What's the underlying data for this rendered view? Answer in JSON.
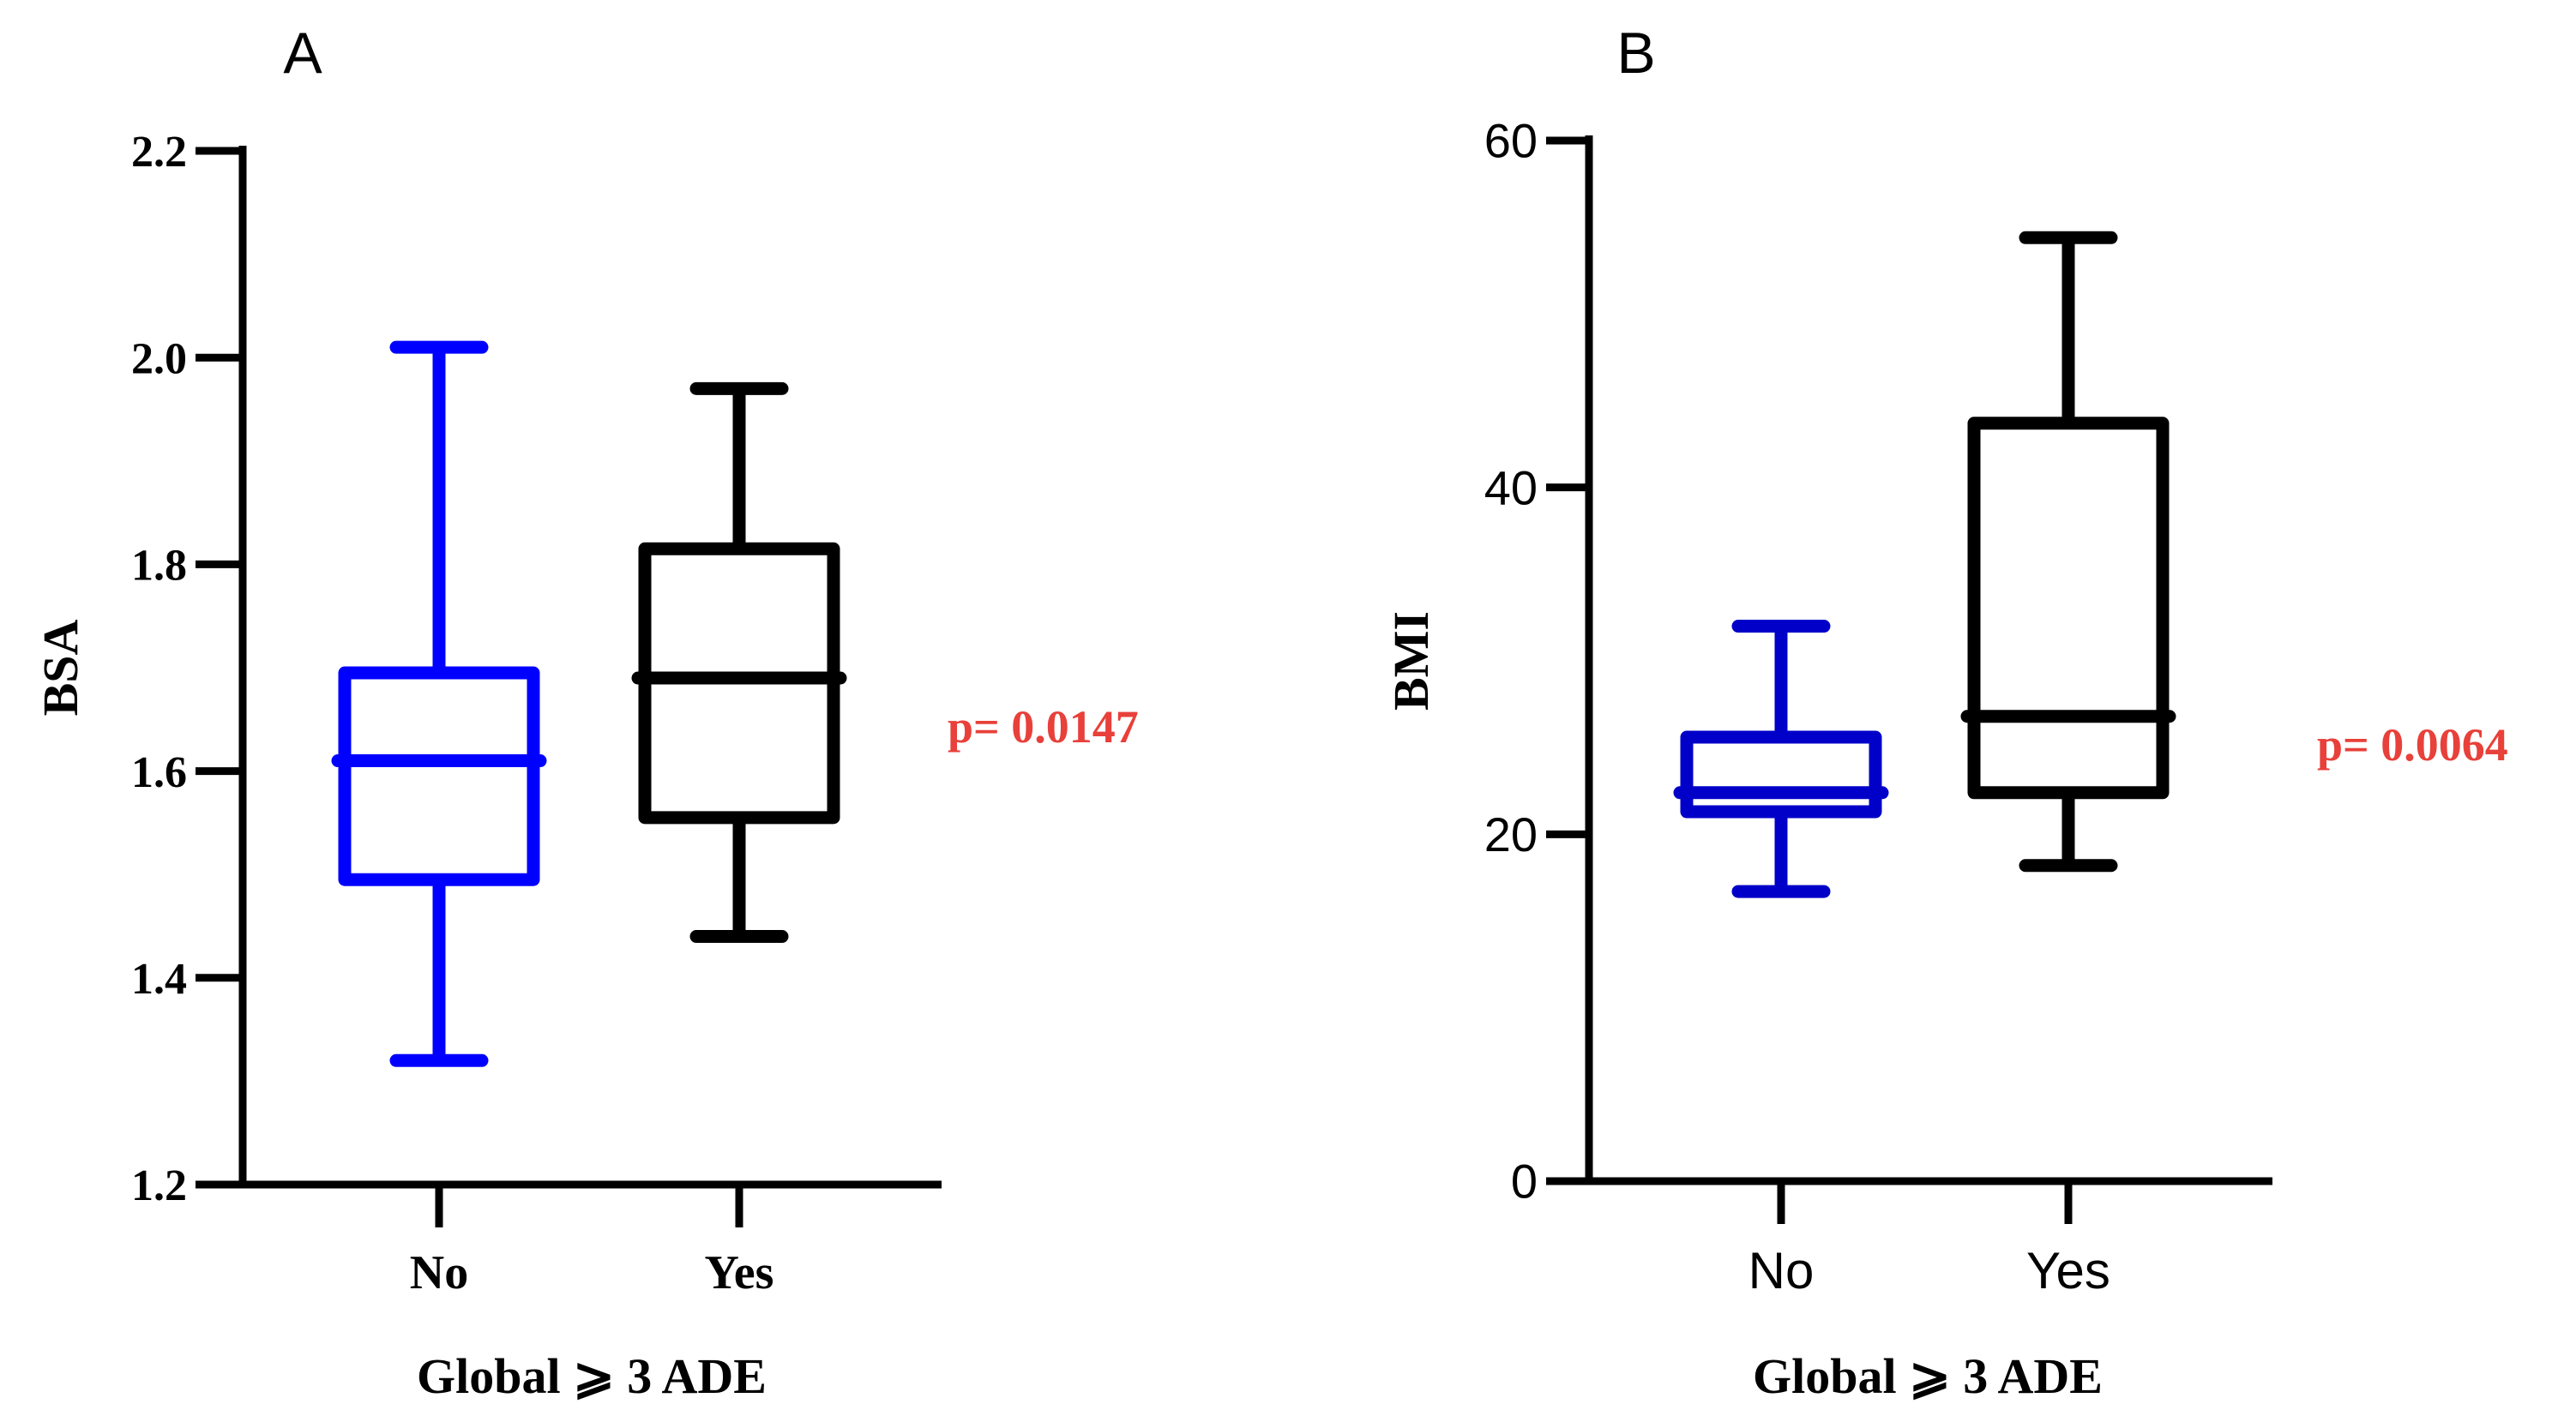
{
  "chart_data": [
    {
      "type": "box",
      "panel_label": "A",
      "ylabel": "BSA",
      "xlabel": "Global ⩾ 3 ADE",
      "categories": [
        "No",
        "Yes"
      ],
      "ylim": [
        1.2,
        2.2
      ],
      "yticks": [
        1.2,
        1.4,
        1.6,
        1.8,
        2.0,
        2.2
      ],
      "ytick_labels": [
        "1.2",
        "1.4",
        "1.6",
        "1.8",
        "2.0",
        "2.2"
      ],
      "series": [
        {
          "category": "No",
          "min": 1.32,
          "q1": 1.495,
          "median": 1.61,
          "q3": 1.695,
          "max": 2.01,
          "color": "#0000ff"
        },
        {
          "category": "Yes",
          "min": 1.44,
          "q1": 1.555,
          "median": 1.69,
          "q3": 1.815,
          "max": 1.97,
          "color": "#000000"
        }
      ],
      "annotation": "p= 0.0147",
      "annotation_color": "#e8403a"
    },
    {
      "type": "box",
      "panel_label": "B",
      "ylabel": "BMI",
      "xlabel": "Global ⩾ 3 ADE",
      "categories": [
        "No",
        "Yes"
      ],
      "ylim": [
        0,
        60
      ],
      "yticks": [
        0,
        20,
        40,
        60
      ],
      "ytick_labels": [
        "0",
        "20",
        "40",
        "60"
      ],
      "series": [
        {
          "category": "No",
          "min": 16.7,
          "q1": 21.3,
          "median": 22.4,
          "q3": 25.6,
          "max": 32.0,
          "color": "#0000c8"
        },
        {
          "category": "Yes",
          "min": 18.2,
          "q1": 22.4,
          "median": 26.8,
          "q3": 43.7,
          "max": 54.4,
          "color": "#000000"
        }
      ],
      "annotation": "p= 0.0064",
      "annotation_color": "#e8403a"
    }
  ]
}
